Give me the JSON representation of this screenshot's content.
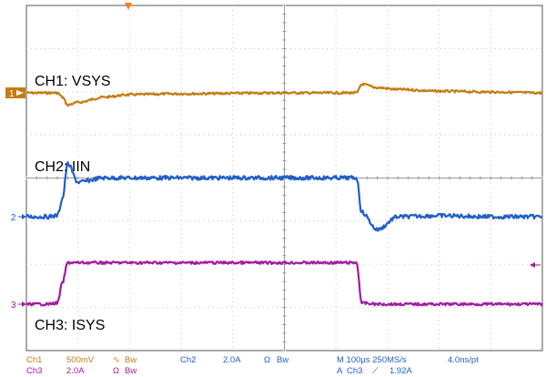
{
  "chart_data": {
    "type": "line",
    "title": "",
    "xlabel": "",
    "ylabel": "",
    "grid": true,
    "grid_divisions": {
      "x": 10,
      "y": 8
    },
    "x": [
      0,
      0.4,
      0.6,
      0.7,
      0.8,
      1.0,
      1.5,
      2.0,
      3.0,
      5.0,
      6.4,
      6.5,
      6.8,
      7.2,
      8.0,
      9.0,
      10.0
    ],
    "series": [
      {
        "name": "CH1: VSYS",
        "color": "#c47d12",
        "marker": "1",
        "values": [
          3.98,
          3.98,
          3.98,
          3.93,
          3.84,
          3.87,
          3.93,
          3.96,
          3.97,
          3.98,
          3.98,
          4.08,
          4.04,
          4.02,
          4.0,
          3.99,
          3.98
        ]
      },
      {
        "name": "CH2: IIN",
        "color": "#1f5fc8",
        "marker": "2",
        "values": [
          0.0,
          0.0,
          0.05,
          0.85,
          2.45,
          1.6,
          1.8,
          1.8,
          1.8,
          1.8,
          1.8,
          0.2,
          -0.6,
          0.0,
          0.05,
          0.0,
          0.0
        ]
      },
      {
        "name": "CH3: ISYS",
        "color": "#a31aa3",
        "marker": "3",
        "values": [
          0.0,
          0.0,
          0.05,
          1.0,
          1.92,
          1.92,
          1.92,
          1.92,
          1.92,
          1.92,
          1.92,
          0.05,
          0.0,
          0.0,
          0.0,
          0.0,
          0.0
        ]
      }
    ],
    "status_lines": [
      [
        "Ch1",
        "500mV",
        "∿",
        "Bw",
        "Ch2",
        "2.0A",
        "Ω",
        "Bw",
        "M 100µs 250MS/s",
        "4.0ns/pt"
      ],
      [
        "Ch3",
        "2.0A",
        "Ω",
        "Bw",
        "A",
        "Ch3",
        "⟋",
        "1.92A"
      ]
    ]
  }
}
